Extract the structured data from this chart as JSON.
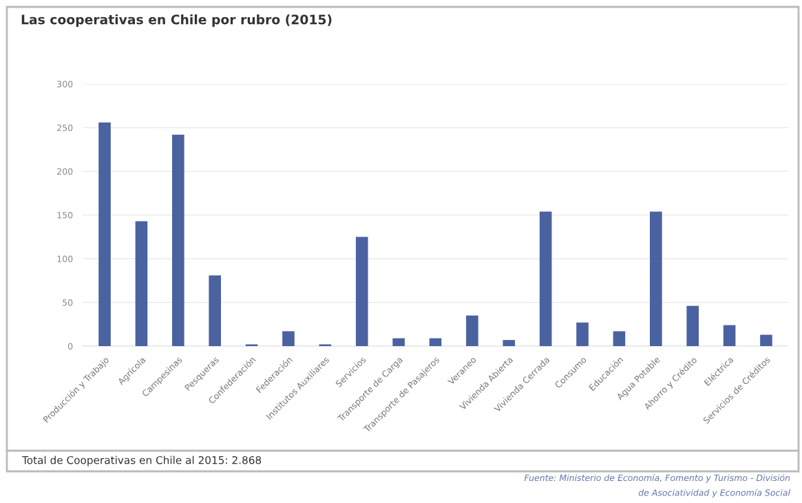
{
  "chart_data": {
    "type": "bar",
    "title": "Las cooperativas en Chile por rubro (2015)",
    "categories": [
      "Producción y Trabajo",
      "Agrícola",
      "Campesinas",
      "Pesqueras",
      "Confederación",
      "Federación",
      "Institutos Auxiliares",
      "Servicios",
      "Transporte de Carga",
      "Transporte de Pasajeros",
      "Veraneo",
      "Vivienda Abierta",
      "Vivienda Cerrada",
      "Consumo",
      "Educación",
      "Agua Potable",
      "Ahorro y Crédito",
      "Eléctrica",
      "Servicios de Créditos"
    ],
    "values": [
      256,
      143,
      242,
      81,
      2,
      17,
      2,
      125,
      9,
      9,
      35,
      7,
      154,
      27,
      17,
      154,
      46,
      24,
      13
    ],
    "color": "#4a62a0",
    "ylim": [
      0,
      300
    ],
    "yticks": [
      0,
      50,
      100,
      150,
      200,
      250,
      300
    ],
    "grid": "y",
    "annotations": [
      "Total de Cooperativas en Chile al 2015: 2.868",
      "Fuente: Ministerio de Economía, Fomento y Turismo - División\nde Asociatividad y Economía Social"
    ]
  }
}
